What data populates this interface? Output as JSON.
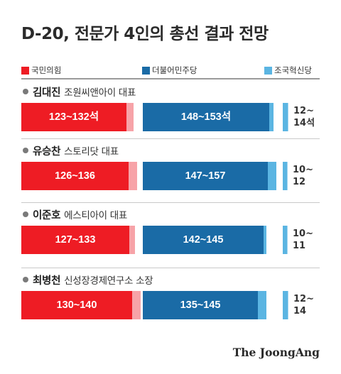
{
  "title": "D-20, 전문가 4인의 총선 결과 전망",
  "source": "The JoongAng",
  "colors": {
    "red": "#ee1c24",
    "red_light": "#f7a3a8",
    "blue": "#1a6ba6",
    "blue_light": "#5bb5e2",
    "sky": "#5bb5e2"
  },
  "chart_data": {
    "type": "bar",
    "title": "D-20, 전문가 4인의 총선 결과 전망",
    "series": [
      {
        "name": "국민의힘",
        "color": "#ee1c24"
      },
      {
        "name": "더불어민주당",
        "color": "#1a6ba6"
      },
      {
        "name": "조국혁신당",
        "color": "#5bb5e2"
      }
    ],
    "experts": [
      {
        "name": "김대진",
        "role": "조원씨앤아이 대표",
        "ppp": {
          "min": 123,
          "max": 132,
          "label": "123~132석"
        },
        "dem": {
          "min": 148,
          "max": 153,
          "label": "148~153석"
        },
        "reb": {
          "min": 12,
          "max": 14,
          "label_top": "12~",
          "label_bottom": "14석"
        }
      },
      {
        "name": "유승찬",
        "role": "스토리닷 대표",
        "ppp": {
          "min": 126,
          "max": 136,
          "label": "126~136"
        },
        "dem": {
          "min": 147,
          "max": 157,
          "label": "147~157"
        },
        "reb": {
          "min": 10,
          "max": 12,
          "label_top": "10~",
          "label_bottom": "12"
        }
      },
      {
        "name": "이준호",
        "role": "에스티아이 대표",
        "ppp": {
          "min": 127,
          "max": 133,
          "label": "127~133"
        },
        "dem": {
          "min": 142,
          "max": 145,
          "label": "142~145"
        },
        "reb": {
          "min": 10,
          "max": 11,
          "label_top": "10~",
          "label_bottom": "11"
        }
      },
      {
        "name": "최병천",
        "role": "신성장경제연구소 소장",
        "ppp": {
          "min": 130,
          "max": 140,
          "label": "130~140"
        },
        "dem": {
          "min": 135,
          "max": 145,
          "label": "135~145"
        },
        "reb": {
          "min": 12,
          "max": 14,
          "label_top": "12~",
          "label_bottom": "14"
        }
      }
    ]
  }
}
